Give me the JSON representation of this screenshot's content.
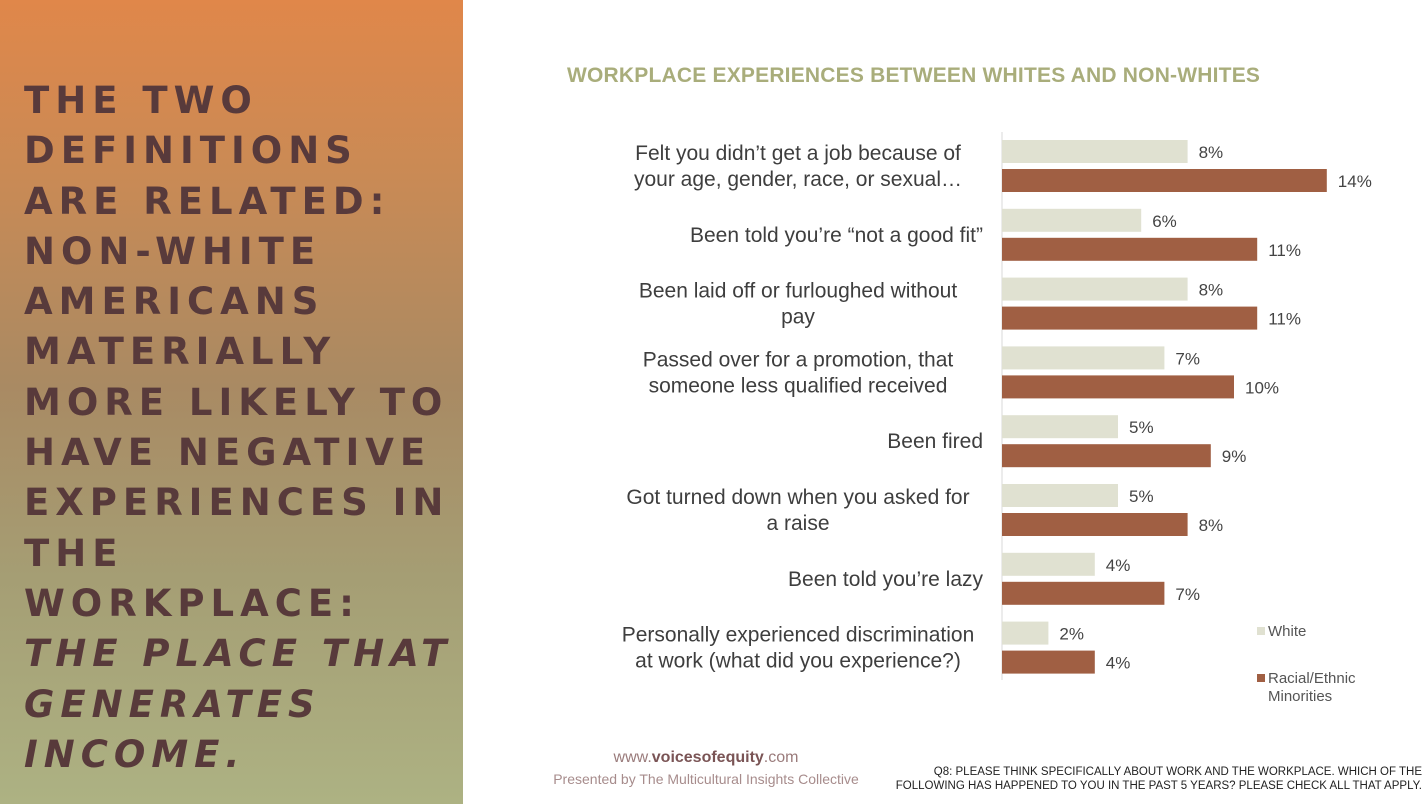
{
  "headline": {
    "main": "The two definitions are related: Non-white Americans materially more likely to have negative experiences in the workplace:",
    "emphasis": "the place that generates income."
  },
  "footer": {
    "url_prefix": "www.",
    "url_brand": "voicesofequity",
    "url_suffix": ".com",
    "presented_by": "Presented by The Multicultural Insights Collective",
    "question_line1": "Q8: PLEASE THINK SPECIFICALLY ABOUT WORK AND THE WORKPLACE. WHICH OF THE",
    "question_line2": "FOLLOWING HAS HAPPENED TO YOU IN THE PAST 5 YEARS? PLEASE CHECK ALL THAT APPLY."
  },
  "colors": {
    "white_series": "#e0e1d1",
    "minority_series": "#a05f43",
    "title": "#a9ad7b",
    "headline": "#583a3b"
  },
  "chart_data": {
    "type": "bar",
    "orientation": "horizontal",
    "title": "WORKPLACE EXPERIENCES BETWEEN WHITES AND NON-WHITES",
    "categories": [
      [
        "Felt you didn’t get a job because of",
        "your age, gender, race, or sexual…"
      ],
      [
        "Been told you’re “not a good fit”"
      ],
      [
        "Been laid off or furloughed without",
        "pay"
      ],
      [
        "Passed over for a promotion, that",
        "someone less qualified received"
      ],
      [
        "Been fired"
      ],
      [
        "Got turned down when you asked for",
        "a raise"
      ],
      [
        "Been told you’re lazy"
      ],
      [
        "Personally experienced discrimination",
        "at work (what did you experience?)"
      ]
    ],
    "series": [
      {
        "name": "White",
        "values": [
          8,
          6,
          8,
          7,
          5,
          5,
          4,
          2
        ],
        "labels": [
          "8%",
          "6%",
          "8%",
          "7%",
          "5%",
          "5%",
          "4%",
          "2%"
        ]
      },
      {
        "name": "Racial/Ethnic Minorities",
        "values": [
          14,
          11,
          11,
          10,
          9,
          8,
          7,
          4
        ],
        "labels": [
          "14%",
          "11%",
          "11%",
          "10%",
          "9%",
          "8%",
          "7%",
          "4%"
        ]
      }
    ],
    "legend": {
      "position": "bottom-right",
      "labels": [
        [
          "White"
        ],
        [
          "Racial/Ethnic",
          "Minorities"
        ]
      ]
    }
  }
}
